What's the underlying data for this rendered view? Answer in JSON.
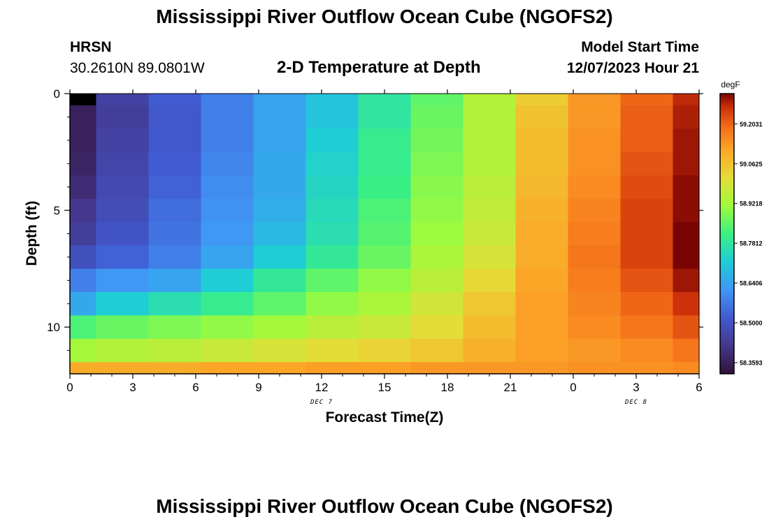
{
  "header": {
    "title": "Mississippi River Outflow Ocean Cube (NGOFS2)",
    "station_name": "HRSN",
    "station_coords": "30.2610N  89.0801W",
    "plot_subtitle": "2-D Temperature at Depth",
    "model_start_label": "Model Start Time",
    "model_start_value": "12/07/2023 Hour 21"
  },
  "footer": {
    "title": "Mississippi River Outflow Ocean Cube (NGOFS2)"
  },
  "chart_data": {
    "type": "heatmap",
    "title": "2-D Temperature at Depth",
    "xlabel": "Forecast Time(Z)",
    "ylabel": "Depth (ft)",
    "x_ticks": [
      "0",
      "3",
      "6",
      "9",
      "12",
      "15",
      "18",
      "21",
      "0",
      "3",
      "6"
    ],
    "x_tick_values": [
      0,
      3,
      6,
      9,
      12,
      15,
      18,
      21,
      24,
      27,
      30
    ],
    "xlim": [
      0,
      30
    ],
    "date_labels": [
      {
        "text": "DEC 7",
        "x": 12
      },
      {
        "text": "DEC 8",
        "x": 27
      }
    ],
    "y_ticks": [
      "0",
      "5",
      "10"
    ],
    "y_tick_values": [
      0,
      5,
      10
    ],
    "ylim": [
      0,
      12
    ],
    "col_edges": [
      0,
      1.25,
      3.75,
      6.25,
      8.75,
      11.25,
      13.75,
      16.25,
      18.75,
      21.25,
      23.75,
      26.25,
      28.75,
      30
    ],
    "row_edges": [
      0,
      0.5,
      1.5,
      2.5,
      3.5,
      4.5,
      5.5,
      6.5,
      7.5,
      8.5,
      9.5,
      10.5,
      11.5,
      12
    ],
    "colorbar": {
      "unit": "degF",
      "labels": [
        "59.2031",
        "59.0625",
        "58.9218",
        "58.7812",
        "58.6406",
        "58.5000",
        "58.3593"
      ],
      "label_values": [
        59.2031,
        59.0625,
        58.9218,
        58.7812,
        58.6406,
        58.5,
        58.3593
      ],
      "range": [
        58.32,
        59.31
      ]
    },
    "values": [
      [
        58.32,
        58.45,
        58.52,
        58.58,
        58.64,
        58.7,
        58.78,
        58.85,
        58.94,
        59.04,
        59.13,
        59.2,
        59.27
      ],
      [
        58.36,
        58.44,
        58.51,
        58.58,
        58.64,
        58.7,
        58.78,
        58.86,
        58.94,
        59.06,
        59.13,
        59.21,
        59.28
      ],
      [
        58.36,
        58.45,
        58.51,
        58.58,
        58.64,
        58.72,
        58.8,
        58.87,
        58.94,
        59.07,
        59.14,
        59.21,
        59.29
      ],
      [
        58.37,
        58.46,
        58.52,
        58.59,
        58.65,
        58.73,
        58.8,
        58.88,
        58.94,
        59.07,
        59.14,
        59.22,
        59.29
      ],
      [
        58.39,
        58.47,
        58.53,
        58.6,
        58.65,
        58.74,
        58.81,
        58.89,
        58.95,
        59.08,
        59.15,
        59.23,
        59.3
      ],
      [
        58.42,
        58.48,
        58.55,
        58.61,
        58.66,
        58.75,
        58.83,
        58.9,
        58.96,
        59.09,
        59.16,
        59.24,
        59.3
      ],
      [
        58.44,
        58.5,
        58.56,
        58.62,
        58.68,
        58.76,
        58.84,
        58.91,
        58.97,
        59.1,
        59.17,
        59.24,
        59.31
      ],
      [
        58.49,
        58.53,
        58.58,
        58.64,
        58.72,
        58.79,
        58.86,
        58.93,
        58.99,
        59.1,
        59.18,
        59.24,
        59.31
      ],
      [
        58.58,
        58.62,
        58.64,
        58.72,
        58.79,
        58.85,
        58.9,
        58.95,
        59.02,
        59.11,
        59.17,
        59.22,
        59.29
      ],
      [
        58.65,
        58.72,
        58.76,
        58.8,
        58.85,
        58.9,
        58.93,
        58.98,
        59.05,
        59.12,
        59.16,
        59.2,
        59.26
      ],
      [
        58.83,
        58.86,
        58.88,
        58.9,
        58.92,
        58.95,
        58.97,
        59.01,
        59.07,
        59.12,
        59.15,
        59.18,
        59.22
      ],
      [
        58.92,
        58.94,
        58.95,
        58.97,
        58.99,
        59.01,
        59.03,
        59.05,
        59.09,
        59.12,
        59.13,
        59.15,
        59.18
      ],
      [
        59.1,
        59.1,
        59.1,
        59.11,
        59.11,
        59.12,
        59.12,
        59.13,
        59.13,
        59.13,
        59.14,
        59.14,
        59.15
      ]
    ]
  }
}
